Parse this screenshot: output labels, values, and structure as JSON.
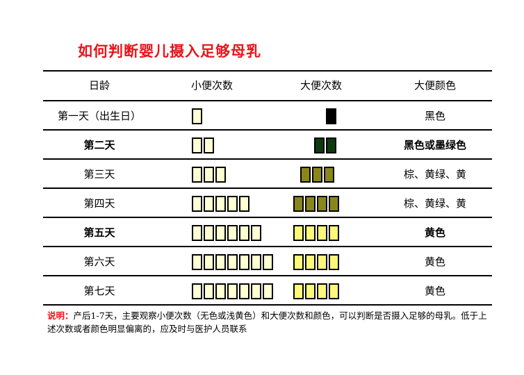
{
  "title": "如何判断婴儿摄入足够母乳",
  "headers": [
    "日龄",
    "小便次数",
    "大便次数",
    "大便颜色"
  ],
  "rows": [
    {
      "day": "第一天（出生日）",
      "urine_count": 1,
      "stool_count": 1,
      "stool_box_color": "#000000",
      "color_text": "黑色",
      "bold": false
    },
    {
      "day": "第二天",
      "urine_count": 2,
      "stool_count": 2,
      "stool_box_color": "#0e3a10",
      "color_text": "黑色或墨绿色",
      "bold": true
    },
    {
      "day": "第三天",
      "urine_count": 3,
      "stool_count": 3,
      "stool_box_color": "#8a861c",
      "color_text": "棕、黄绿、黄",
      "bold": false
    },
    {
      "day": "第四天",
      "urine_count": 5,
      "stool_count": 4,
      "stool_box_color": "#8a861c",
      "color_text": "棕、黄绿、黄",
      "bold": false
    },
    {
      "day": "第五天",
      "urine_count": 6,
      "stool_count": 4,
      "stool_box_color": "#fdf87a",
      "color_text": "黄色",
      "bold": true
    },
    {
      "day": "第六天",
      "urine_count": 7,
      "stool_count": 4,
      "stool_box_color": "#fdf87a",
      "color_text": "黄色",
      "bold": false
    },
    {
      "day": "第七天",
      "urine_count": 7,
      "stool_count": 4,
      "stool_box_color": "#fdf87a",
      "color_text": "黄色",
      "bold": false
    }
  ],
  "urine_box_color": "#ffffd2",
  "note": {
    "label": "说明：",
    "text": "产后1-7天，主要观察小便次数（无色或浅黄色）和大便次数和颜色，可以判断是否摄入足够的母乳。低于上述次数或者颜色明显偏离的，应及时与医护人员联系"
  },
  "colors": {
    "title": "#e8141a",
    "note_label": "#e8141a"
  }
}
